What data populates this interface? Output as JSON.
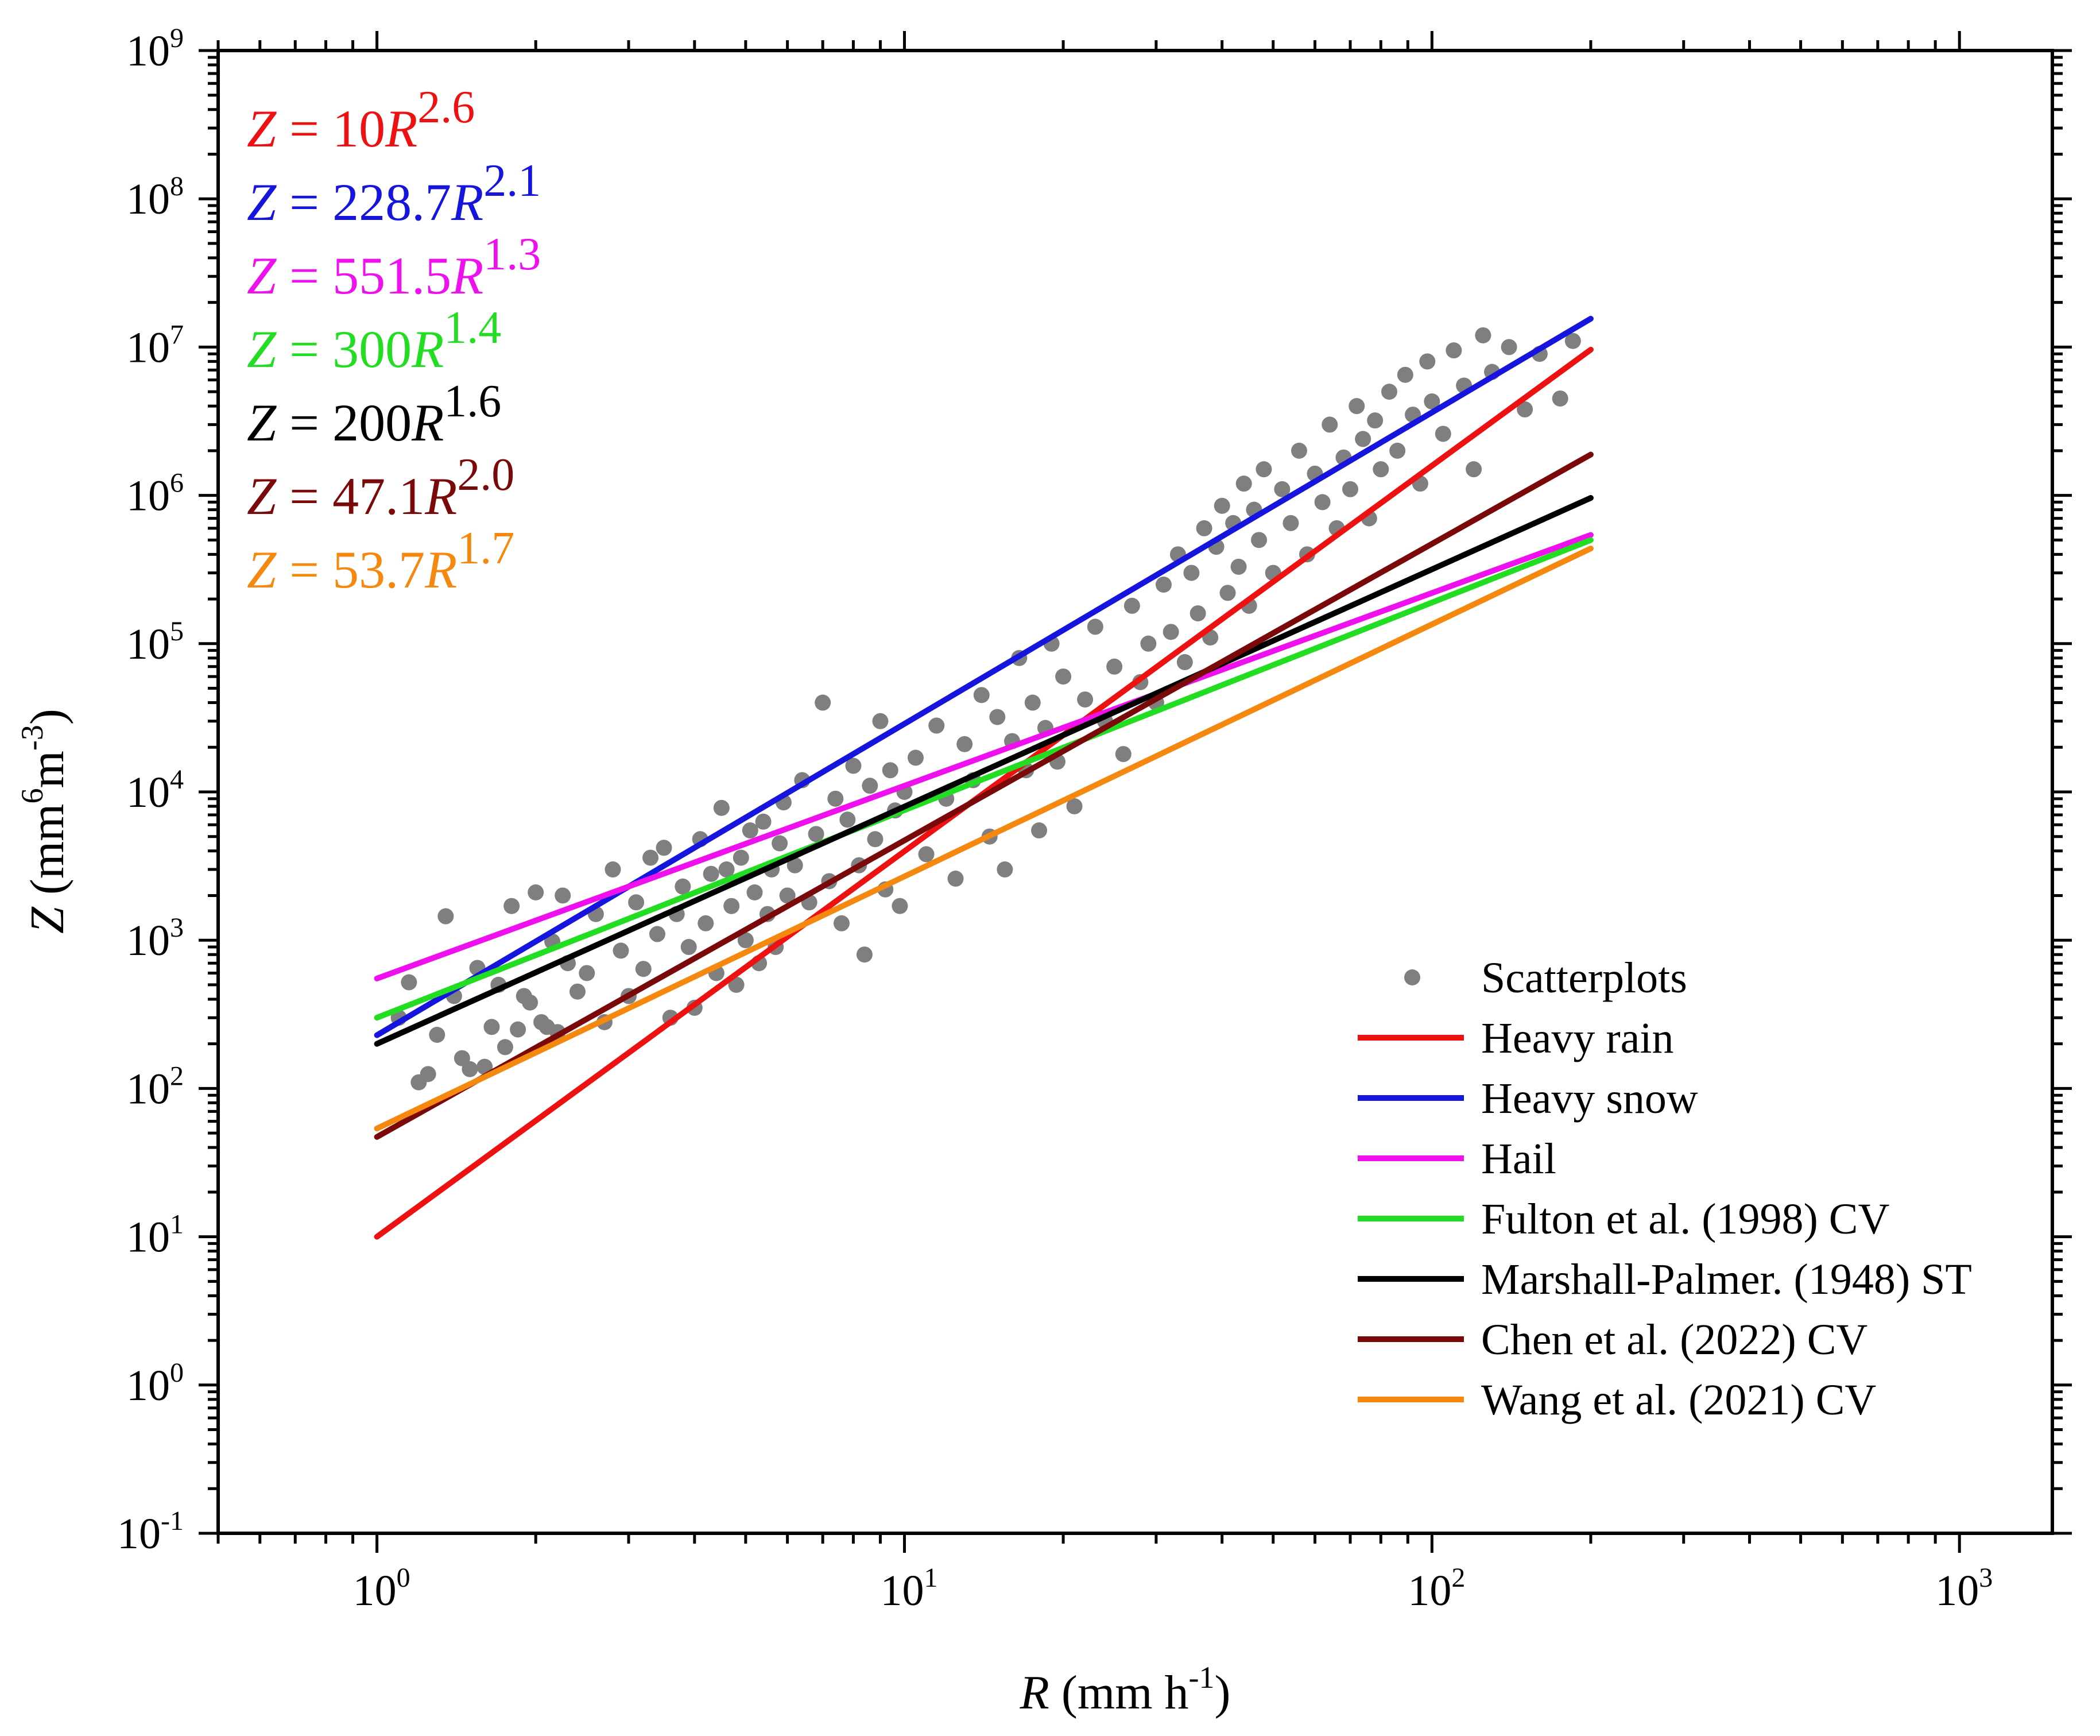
{
  "chart_data": {
    "type": "scatter",
    "xscale": "log",
    "yscale": "log",
    "xlim": [
      0.5,
      1500
    ],
    "ylim": [
      0.1,
      1000000000
    ],
    "x_ticks": [
      {
        "base": "10",
        "exp": "0"
      },
      {
        "base": "10",
        "exp": "1"
      },
      {
        "base": "10",
        "exp": "2"
      },
      {
        "base": "10",
        "exp": "3"
      }
    ],
    "y_ticks": [
      {
        "base": "10",
        "exp": "-1"
      },
      {
        "base": "10",
        "exp": "0"
      },
      {
        "base": "10",
        "exp": "1"
      },
      {
        "base": "10",
        "exp": "2"
      },
      {
        "base": "10",
        "exp": "3"
      },
      {
        "base": "10",
        "exp": "4"
      },
      {
        "base": "10",
        "exp": "5"
      },
      {
        "base": "10",
        "exp": "6"
      },
      {
        "base": "10",
        "exp": "7"
      },
      {
        "base": "10",
        "exp": "8"
      },
      {
        "base": "10",
        "exp": "9"
      }
    ],
    "xlabel": {
      "var": "R",
      "text": " (mm h",
      "sup": "-1",
      "close": ")"
    },
    "ylabel": {
      "var": "Z",
      "text": " (mm",
      "sup1": "6",
      "mid": "m",
      "sup2": "-3",
      "close": ")"
    },
    "series": [
      {
        "name": "Heavy rain",
        "a": 10,
        "b": 2.6,
        "x_range": [
          1,
          200
        ],
        "color": "#ee1111",
        "eq": {
          "lhs": "Z",
          "op": " = ",
          "coef": "10",
          "var": "R",
          "exp": "2.6"
        }
      },
      {
        "name": "Heavy snow",
        "a": 228.7,
        "b": 2.1,
        "x_range": [
          1,
          200
        ],
        "color": "#1515dd",
        "eq": {
          "lhs": "Z",
          "op": " = ",
          "coef": "228.7",
          "var": "R",
          "exp": "2.1"
        }
      },
      {
        "name": "Hail",
        "a": 551.5,
        "b": 1.3,
        "x_range": [
          1,
          200
        ],
        "color": "#ee11ee",
        "eq": {
          "lhs": "Z",
          "op": " = ",
          "coef": "551.5",
          "var": "R",
          "exp": "1.3"
        }
      },
      {
        "name": "Fulton et al. (1998) CV",
        "a": 300,
        "b": 1.4,
        "x_range": [
          1,
          200
        ],
        "color": "#22dd22",
        "eq": {
          "lhs": "Z",
          "op": " = ",
          "coef": "300",
          "var": "R",
          "exp": "1.4"
        }
      },
      {
        "name": "Marshall-Palmer. (1948) ST",
        "a": 200,
        "b": 1.6,
        "x_range": [
          1,
          200
        ],
        "color": "#000000",
        "eq": {
          "lhs": "Z",
          "op": " = ",
          "coef": "200",
          "var": "R",
          "exp": "1.6"
        }
      },
      {
        "name": "Chen et al. (2022) CV",
        "a": 47.1,
        "b": 2.0,
        "x_range": [
          1,
          200
        ],
        "color": "#7a0a0a",
        "eq": {
          "lhs": "Z",
          "op": " = ",
          "coef": "47.1",
          "var": "R",
          "exp": "2.0"
        }
      },
      {
        "name": "Wang et al. (2021) CV",
        "a": 53.7,
        "b": 1.7,
        "x_range": [
          1,
          200
        ],
        "color": "#f5880f",
        "eq": {
          "lhs": "Z",
          "op": " = ",
          "coef": "53.7",
          "var": "R",
          "exp": "1.7"
        }
      }
    ],
    "scatter": {
      "name": "Scatterplots",
      "color": "#7f7f7f",
      "points": [
        [
          1.1,
          300
        ],
        [
          1.15,
          520
        ],
        [
          1.2,
          110
        ],
        [
          1.25,
          125
        ],
        [
          1.3,
          230
        ],
        [
          1.35,
          1450
        ],
        [
          1.4,
          420
        ],
        [
          1.45,
          160
        ],
        [
          1.5,
          135
        ],
        [
          1.55,
          650
        ],
        [
          1.6,
          140
        ],
        [
          1.65,
          260
        ],
        [
          1.7,
          500
        ],
        [
          1.75,
          190
        ],
        [
          1.8,
          1700
        ],
        [
          1.85,
          250
        ],
        [
          1.9,
          420
        ],
        [
          1.95,
          380
        ],
        [
          2.0,
          2100
        ],
        [
          2.05,
          280
        ],
        [
          2.1,
          260
        ],
        [
          2.15,
          980
        ],
        [
          2.2,
          240
        ],
        [
          2.25,
          2000
        ],
        [
          2.3,
          700
        ],
        [
          2.4,
          450
        ],
        [
          2.5,
          600
        ],
        [
          2.6,
          1500
        ],
        [
          2.7,
          280
        ],
        [
          2.8,
          3000
        ],
        [
          2.9,
          850
        ],
        [
          3.0,
          420
        ],
        [
          3.1,
          1800
        ],
        [
          3.2,
          640
        ],
        [
          3.3,
          3600
        ],
        [
          3.4,
          1100
        ],
        [
          3.5,
          4200
        ],
        [
          3.6,
          300
        ],
        [
          3.7,
          1500
        ],
        [
          3.8,
          2300
        ],
        [
          3.9,
          900
        ],
        [
          4.0,
          350
        ],
        [
          4.1,
          4800
        ],
        [
          4.2,
          1300
        ],
        [
          4.3,
          2800
        ],
        [
          4.4,
          600
        ],
        [
          4.5,
          7800
        ],
        [
          4.6,
          3000
        ],
        [
          4.7,
          1700
        ],
        [
          4.8,
          500
        ],
        [
          4.9,
          3600
        ],
        [
          5.0,
          1000
        ],
        [
          5.1,
          5500
        ],
        [
          5.2,
          2100
        ],
        [
          5.3,
          700
        ],
        [
          5.4,
          6300
        ],
        [
          5.5,
          1500
        ],
        [
          5.6,
          3000
        ],
        [
          5.7,
          900
        ],
        [
          5.8,
          4500
        ],
        [
          5.9,
          8500
        ],
        [
          6.0,
          2000
        ],
        [
          6.2,
          3200
        ],
        [
          6.4,
          12000
        ],
        [
          6.6,
          1800
        ],
        [
          6.8,
          5200
        ],
        [
          7.0,
          40000
        ],
        [
          7.2,
          2500
        ],
        [
          7.4,
          9000
        ],
        [
          7.6,
          1300
        ],
        [
          7.8,
          6500
        ],
        [
          8.0,
          15000
        ],
        [
          8.2,
          3200
        ],
        [
          8.4,
          800
        ],
        [
          8.6,
          11000
        ],
        [
          8.8,
          4800
        ],
        [
          9.0,
          30000
        ],
        [
          9.2,
          2200
        ],
        [
          9.4,
          14000
        ],
        [
          9.6,
          7500
        ],
        [
          9.8,
          1700
        ],
        [
          10.0,
          10000
        ],
        [
          10.5,
          17000
        ],
        [
          11.0,
          3800
        ],
        [
          11.5,
          28000
        ],
        [
          12.0,
          9000
        ],
        [
          12.5,
          2600
        ],
        [
          13.0,
          21000
        ],
        [
          13.5,
          12000
        ],
        [
          14.0,
          45000
        ],
        [
          14.5,
          5000
        ],
        [
          15.0,
          32000
        ],
        [
          15.5,
          3000
        ],
        [
          16.0,
          22000
        ],
        [
          16.5,
          80000
        ],
        [
          17.0,
          14000
        ],
        [
          17.5,
          40000
        ],
        [
          18.0,
          5500
        ],
        [
          18.5,
          27000
        ],
        [
          19.0,
          100000
        ],
        [
          19.5,
          16000
        ],
        [
          20.0,
          60000
        ],
        [
          21.0,
          8000
        ],
        [
          22.0,
          42000
        ],
        [
          23.0,
          130000
        ],
        [
          24.0,
          30000
        ],
        [
          25.0,
          70000
        ],
        [
          26.0,
          18000
        ],
        [
          27.0,
          180000
        ],
        [
          28.0,
          55000
        ],
        [
          29.0,
          100000
        ],
        [
          30.0,
          40000
        ],
        [
          31.0,
          250000
        ],
        [
          32.0,
          120000
        ],
        [
          33.0,
          400000
        ],
        [
          34.0,
          75000
        ],
        [
          35.0,
          300000
        ],
        [
          36.0,
          160000
        ],
        [
          37.0,
          600000
        ],
        [
          38.0,
          110000
        ],
        [
          39.0,
          450000
        ],
        [
          40.0,
          850000
        ],
        [
          41.0,
          220000
        ],
        [
          42.0,
          650000
        ],
        [
          43.0,
          330000
        ],
        [
          44.0,
          1200000
        ],
        [
          45.0,
          180000
        ],
        [
          46.0,
          800000
        ],
        [
          47.0,
          500000
        ],
        [
          48.0,
          1500000
        ],
        [
          50.0,
          300000
        ],
        [
          52.0,
          1100000
        ],
        [
          54.0,
          650000
        ],
        [
          56.0,
          2000000
        ],
        [
          58.0,
          400000
        ],
        [
          60.0,
          1400000
        ],
        [
          62.0,
          900000
        ],
        [
          64.0,
          3000000
        ],
        [
          66.0,
          600000
        ],
        [
          68.0,
          1800000
        ],
        [
          70.0,
          1100000
        ],
        [
          72.0,
          4000000
        ],
        [
          74.0,
          2400000
        ],
        [
          76.0,
          700000
        ],
        [
          78.0,
          3200000
        ],
        [
          80.0,
          1500000
        ],
        [
          83.0,
          5000000
        ],
        [
          86.0,
          2000000
        ],
        [
          89.0,
          6500000
        ],
        [
          92.0,
          3500000
        ],
        [
          95.0,
          1200000
        ],
        [
          98.0,
          8000000
        ],
        [
          100.0,
          4300000
        ],
        [
          105.0,
          2600000
        ],
        [
          110.0,
          9500000
        ],
        [
          115.0,
          5500000
        ],
        [
          120.0,
          1500000
        ],
        [
          125.0,
          12000000
        ],
        [
          130.0,
          6800000
        ],
        [
          140.0,
          10000000
        ],
        [
          150.0,
          3800000
        ],
        [
          160.0,
          9000000
        ],
        [
          175.0,
          4500000
        ],
        [
          185.0,
          11000000
        ]
      ]
    }
  }
}
